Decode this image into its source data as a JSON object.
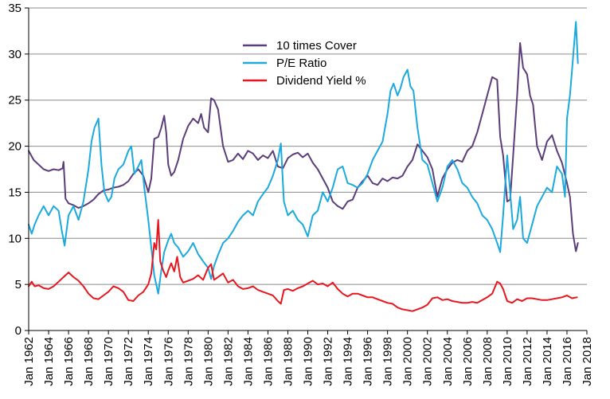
{
  "chart_data": {
    "type": "line",
    "title": "",
    "xlabel": "",
    "ylabel": "",
    "xlim": [
      1962,
      2018
    ],
    "ylim": [
      0,
      35
    ],
    "y_ticks": [
      0,
      5,
      10,
      15,
      20,
      25,
      30,
      35
    ],
    "y_tick_labels": [
      "0",
      "5",
      "10",
      "15",
      "20",
      "25",
      "30",
      "35"
    ],
    "x_ticks": [
      1962,
      1964,
      1966,
      1968,
      1970,
      1972,
      1974,
      1976,
      1978,
      1980,
      1982,
      1984,
      1986,
      1988,
      1990,
      1992,
      1994,
      1996,
      1998,
      2000,
      2002,
      2004,
      2006,
      2008,
      2010,
      2012,
      2014,
      2016,
      2018
    ],
    "x_tick_labels": [
      "Jan 1962",
      "Jan 1964",
      "Jan 1966",
      "Jan 1968",
      "Jan 1970",
      "Jan 1972",
      "Jan 1974",
      "Jan 1976",
      "Jan 1978",
      "Jan 1980",
      "Jan 1982",
      "Jan 1984",
      "Jan 1986",
      "Jan 1988",
      "Jan 1990",
      "Jan 1992",
      "Jan 1994",
      "Jan 1996",
      "Jan 1998",
      "Jan 2000",
      "Jan 2002",
      "Jan 2004",
      "Jan 2006",
      "Jan 2008",
      "Jan 2010",
      "Jan 2012",
      "Jan 2014",
      "Jan 2016",
      "Jan 2018"
    ],
    "grid": "horizontal",
    "legend_position": "top-center",
    "series": [
      {
        "name": "10 times Cover",
        "color": "#5b3d7a",
        "x": [
          1962.0,
          1962.5,
          1963.0,
          1963.5,
          1964.0,
          1964.5,
          1965.0,
          1965.4,
          1965.5,
          1965.7,
          1966.0,
          1966.5,
          1967.0,
          1967.5,
          1968.0,
          1968.5,
          1969.0,
          1969.5,
          1970.0,
          1970.5,
          1971.0,
          1971.5,
          1972.0,
          1972.5,
          1973.0,
          1973.5,
          1974.0,
          1974.3,
          1974.6,
          1975.0,
          1975.3,
          1975.6,
          1975.8,
          1976.0,
          1976.3,
          1976.6,
          1977.0,
          1977.5,
          1978.0,
          1978.5,
          1979.0,
          1979.3,
          1979.6,
          1980.0,
          1980.3,
          1980.6,
          1981.0,
          1981.5,
          1982.0,
          1982.5,
          1983.0,
          1983.5,
          1984.0,
          1984.5,
          1985.0,
          1985.5,
          1986.0,
          1986.5,
          1987.0,
          1987.5,
          1988.0,
          1988.5,
          1989.0,
          1989.5,
          1990.0,
          1990.5,
          1991.0,
          1991.5,
          1992.0,
          1992.5,
          1993.0,
          1993.5,
          1994.0,
          1994.5,
          1995.0,
          1995.5,
          1996.0,
          1996.5,
          1997.0,
          1997.5,
          1998.0,
          1998.5,
          1999.0,
          1999.5,
          2000.0,
          2000.5,
          2001.0,
          2001.5,
          2002.0,
          2002.5,
          2003.0,
          2003.5,
          2004.0,
          2004.5,
          2005.0,
          2005.5,
          2006.0,
          2006.5,
          2007.0,
          2007.5,
          2008.0,
          2008.5,
          2009.0,
          2009.3,
          2009.6,
          2010.0,
          2010.3,
          2010.6,
          2011.0,
          2011.3,
          2011.6,
          2012.0,
          2012.3,
          2012.6,
          2013.0,
          2013.5,
          2014.0,
          2014.5,
          2015.0,
          2015.5,
          2016.0,
          2016.3,
          2016.6,
          2016.9,
          2017.1
        ],
        "values": [
          19.5,
          18.5,
          18.0,
          17.5,
          17.3,
          17.5,
          17.4,
          17.6,
          18.3,
          14.3,
          13.8,
          13.6,
          13.3,
          13.5,
          13.8,
          14.2,
          14.8,
          15.2,
          15.3,
          15.5,
          15.6,
          15.8,
          16.2,
          17.0,
          17.5,
          16.8,
          15.0,
          16.5,
          20.8,
          21.0,
          22.0,
          23.3,
          21.5,
          18.0,
          16.8,
          17.2,
          18.5,
          20.8,
          22.2,
          23.0,
          22.5,
          23.5,
          22.0,
          21.5,
          25.2,
          25.0,
          24.0,
          20.0,
          18.3,
          18.5,
          19.2,
          18.6,
          19.5,
          19.2,
          18.5,
          19.0,
          18.7,
          19.5,
          17.8,
          17.6,
          18.7,
          19.1,
          19.3,
          18.8,
          19.2,
          18.2,
          17.5,
          16.5,
          15.5,
          14.0,
          13.5,
          13.2,
          14.0,
          14.2,
          15.5,
          16.2,
          16.8,
          16.0,
          15.8,
          16.5,
          16.2,
          16.6,
          16.5,
          16.8,
          17.8,
          18.5,
          20.2,
          19.5,
          18.8,
          17.5,
          14.5,
          16.5,
          17.5,
          18.2,
          18.5,
          18.3,
          19.5,
          20.0,
          21.5,
          23.5,
          25.5,
          27.5,
          27.2,
          21.0,
          19.0,
          14.0,
          14.2,
          19.0,
          25.5,
          31.2,
          28.5,
          27.8,
          25.5,
          24.5,
          20.0,
          18.5,
          20.5,
          21.2,
          19.5,
          18.2,
          16.0,
          14.5,
          10.5,
          8.6,
          9.5
        ]
      },
      {
        "name": "P/E Ratio",
        "color": "#1ba9de",
        "x": [
          1962.0,
          1962.3,
          1962.6,
          1963.0,
          1963.5,
          1964.0,
          1964.5,
          1965.0,
          1965.3,
          1965.6,
          1966.0,
          1966.5,
          1967.0,
          1967.5,
          1968.0,
          1968.3,
          1968.6,
          1969.0,
          1969.3,
          1969.6,
          1970.0,
          1970.3,
          1970.6,
          1971.0,
          1971.5,
          1972.0,
          1972.3,
          1972.6,
          1973.0,
          1973.3,
          1973.6,
          1974.0,
          1974.3,
          1974.6,
          1974.8,
          1975.0,
          1975.3,
          1975.6,
          1976.0,
          1976.3,
          1976.6,
          1977.0,
          1977.5,
          1978.0,
          1978.5,
          1979.0,
          1979.5,
          1980.0,
          1980.3,
          1980.6,
          1981.0,
          1981.5,
          1982.0,
          1982.5,
          1983.0,
          1983.5,
          1984.0,
          1984.5,
          1985.0,
          1985.5,
          1986.0,
          1986.5,
          1987.0,
          1987.3,
          1987.6,
          1988.0,
          1988.5,
          1989.0,
          1989.5,
          1990.0,
          1990.5,
          1991.0,
          1991.5,
          1992.0,
          1992.5,
          1993.0,
          1993.5,
          1994.0,
          1994.5,
          1995.0,
          1995.5,
          1996.0,
          1996.5,
          1997.0,
          1997.5,
          1998.0,
          1998.3,
          1998.6,
          1999.0,
          1999.3,
          1999.6,
          2000.0,
          2000.3,
          2000.6,
          2001.0,
          2001.5,
          2002.0,
          2002.5,
          2003.0,
          2003.5,
          2004.0,
          2004.5,
          2005.0,
          2005.5,
          2006.0,
          2006.5,
          2007.0,
          2007.5,
          2008.0,
          2008.5,
          2009.0,
          2009.3,
          2009.6,
          2010.0,
          2010.3,
          2010.6,
          2011.0,
          2011.3,
          2011.6,
          2012.0,
          2012.5,
          2013.0,
          2013.5,
          2014.0,
          2014.5,
          2015.0,
          2015.5,
          2015.8,
          2016.0,
          2016.3,
          2016.6,
          2016.9,
          2017.1
        ],
        "values": [
          11.5,
          10.5,
          11.5,
          12.5,
          13.5,
          12.5,
          13.5,
          13.0,
          11.0,
          9.2,
          12.5,
          13.5,
          12.0,
          14.0,
          17.5,
          20.5,
          22.0,
          23.0,
          18.0,
          15.0,
          14.0,
          14.5,
          16.5,
          17.5,
          18.0,
          19.5,
          20.0,
          17.0,
          17.8,
          18.5,
          15.5,
          12.0,
          9.0,
          6.0,
          5.0,
          4.0,
          6.5,
          8.5,
          9.8,
          10.5,
          9.5,
          9.0,
          8.0,
          8.6,
          9.5,
          8.3,
          7.5,
          6.8,
          5.6,
          7.0,
          8.2,
          9.5,
          10.0,
          10.8,
          11.8,
          12.5,
          13.0,
          12.5,
          14.0,
          14.8,
          15.5,
          16.8,
          18.5,
          20.3,
          14.0,
          12.5,
          13.0,
          12.0,
          11.5,
          10.2,
          12.5,
          13.0,
          15.0,
          14.0,
          15.5,
          17.5,
          17.8,
          16.0,
          15.8,
          15.5,
          16.0,
          17.0,
          18.5,
          19.5,
          20.5,
          23.5,
          26.0,
          26.8,
          25.5,
          26.3,
          27.5,
          28.3,
          26.5,
          26.0,
          22.0,
          18.5,
          18.0,
          16.0,
          14.0,
          15.5,
          17.8,
          18.5,
          17.5,
          16.0,
          15.5,
          14.5,
          13.8,
          12.5,
          12.0,
          11.0,
          9.5,
          8.5,
          12.5,
          19.0,
          15.0,
          11.0,
          12.0,
          14.5,
          10.0,
          9.5,
          11.5,
          13.5,
          14.5,
          15.5,
          15.0,
          17.8,
          17.0,
          14.5,
          23.0,
          25.5,
          29.5,
          33.5,
          29.0
        ]
      },
      {
        "name": "Dividend Yield %",
        "color": "#e8161e",
        "x": [
          1962.0,
          1962.3,
          1962.6,
          1963.0,
          1963.5,
          1964.0,
          1964.5,
          1965.0,
          1965.5,
          1966.0,
          1966.5,
          1967.0,
          1967.5,
          1968.0,
          1968.5,
          1969.0,
          1969.5,
          1970.0,
          1970.5,
          1971.0,
          1971.5,
          1972.0,
          1972.5,
          1973.0,
          1973.5,
          1974.0,
          1974.3,
          1974.6,
          1974.8,
          1975.0,
          1975.2,
          1975.5,
          1975.8,
          1976.0,
          1976.3,
          1976.6,
          1976.9,
          1977.2,
          1977.5,
          1978.0,
          1978.5,
          1979.0,
          1979.5,
          1980.0,
          1980.3,
          1980.6,
          1981.0,
          1981.5,
          1982.0,
          1982.5,
          1983.0,
          1983.5,
          1984.0,
          1984.5,
          1985.0,
          1985.5,
          1986.0,
          1986.5,
          1987.0,
          1987.3,
          1987.6,
          1988.0,
          1988.5,
          1989.0,
          1989.5,
          1990.0,
          1990.5,
          1991.0,
          1991.5,
          1992.0,
          1992.5,
          1993.0,
          1993.5,
          1994.0,
          1994.5,
          1995.0,
          1995.5,
          1996.0,
          1996.5,
          1997.0,
          1997.5,
          1998.0,
          1998.5,
          1999.0,
          1999.5,
          2000.0,
          2000.5,
          2001.0,
          2001.5,
          2002.0,
          2002.5,
          2003.0,
          2003.5,
          2004.0,
          2004.5,
          2005.0,
          2005.5,
          2006.0,
          2006.5,
          2007.0,
          2007.5,
          2008.0,
          2008.5,
          2009.0,
          2009.3,
          2009.6,
          2010.0,
          2010.5,
          2011.0,
          2011.5,
          2012.0,
          2012.5,
          2013.0,
          2013.5,
          2014.0,
          2014.5,
          2015.0,
          2015.5,
          2016.0,
          2016.5,
          2017.0
        ],
        "values": [
          4.8,
          5.3,
          4.8,
          4.9,
          4.6,
          4.5,
          4.8,
          5.3,
          5.8,
          6.3,
          5.8,
          5.4,
          4.8,
          4.0,
          3.5,
          3.4,
          3.8,
          4.2,
          4.8,
          4.6,
          4.2,
          3.3,
          3.2,
          3.8,
          4.2,
          5.0,
          6.2,
          9.5,
          8.8,
          12.0,
          7.5,
          6.5,
          5.8,
          6.5,
          7.3,
          6.4,
          8.0,
          5.8,
          5.2,
          5.4,
          5.6,
          6.0,
          5.5,
          6.8,
          7.2,
          5.5,
          5.8,
          6.2,
          5.2,
          5.5,
          4.8,
          4.5,
          4.6,
          4.8,
          4.4,
          4.2,
          4.0,
          3.8,
          3.2,
          2.9,
          4.4,
          4.5,
          4.3,
          4.6,
          4.8,
          5.1,
          5.4,
          5.0,
          5.1,
          4.8,
          5.2,
          4.5,
          4.0,
          3.7,
          4.0,
          4.0,
          3.8,
          3.6,
          3.6,
          3.4,
          3.2,
          3.0,
          2.9,
          2.5,
          2.3,
          2.2,
          2.1,
          2.3,
          2.5,
          2.8,
          3.5,
          3.6,
          3.3,
          3.4,
          3.2,
          3.1,
          3.0,
          3.0,
          3.1,
          3.0,
          3.3,
          3.6,
          4.0,
          5.3,
          5.1,
          4.5,
          3.2,
          3.0,
          3.4,
          3.2,
          3.5,
          3.5,
          3.4,
          3.3,
          3.3,
          3.4,
          3.5,
          3.6,
          3.8,
          3.5,
          3.6
        ]
      }
    ]
  }
}
